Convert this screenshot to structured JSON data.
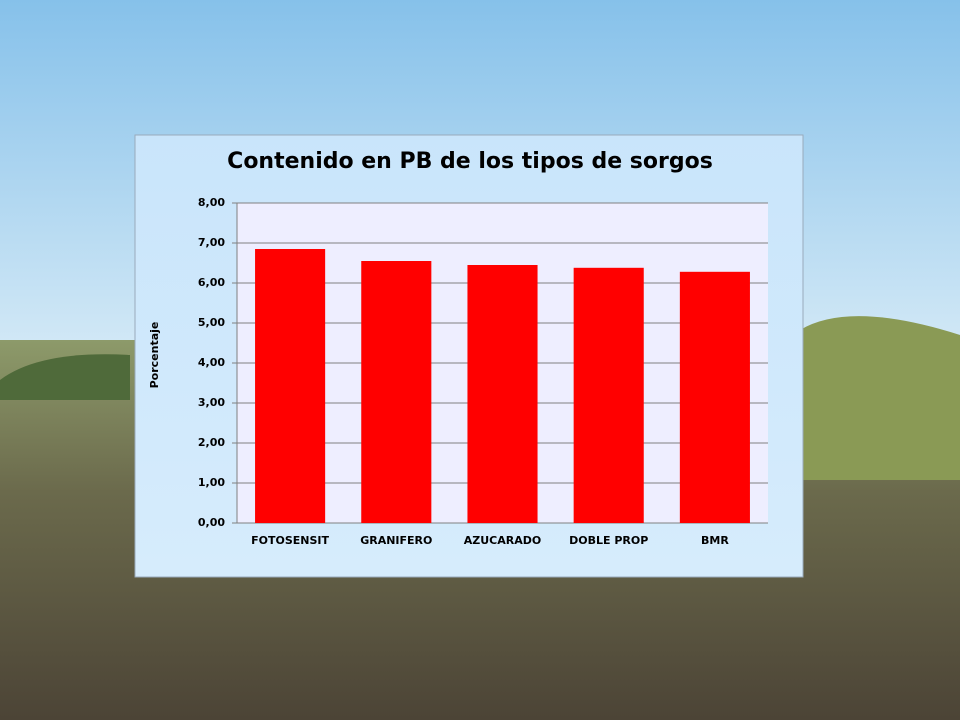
{
  "chart_data": {
    "type": "bar",
    "title": "Contenido en PB de los tipos de sorgos",
    "y_label": "Porcentaje",
    "categories": [
      "FOTOSENSIT",
      "GRANIFERO",
      "AZUCARADO",
      "DOBLE PROP",
      "BMR"
    ],
    "values": [
      6.85,
      6.55,
      6.45,
      6.38,
      6.28
    ],
    "color": "#ff0000",
    "ylim": [
      0,
      8
    ],
    "yticks": [
      {
        "value": 0,
        "label": "0,00"
      },
      {
        "value": 1,
        "label": "1,00"
      },
      {
        "value": 2,
        "label": "2,00"
      },
      {
        "value": 3,
        "label": "3,00"
      },
      {
        "value": 4,
        "label": "4,00"
      },
      {
        "value": 5,
        "label": "5,00"
      },
      {
        "value": 6,
        "label": "6,00"
      },
      {
        "value": 7,
        "label": "7,00"
      },
      {
        "value": 8,
        "label": "8,00"
      }
    ],
    "grid": true
  }
}
